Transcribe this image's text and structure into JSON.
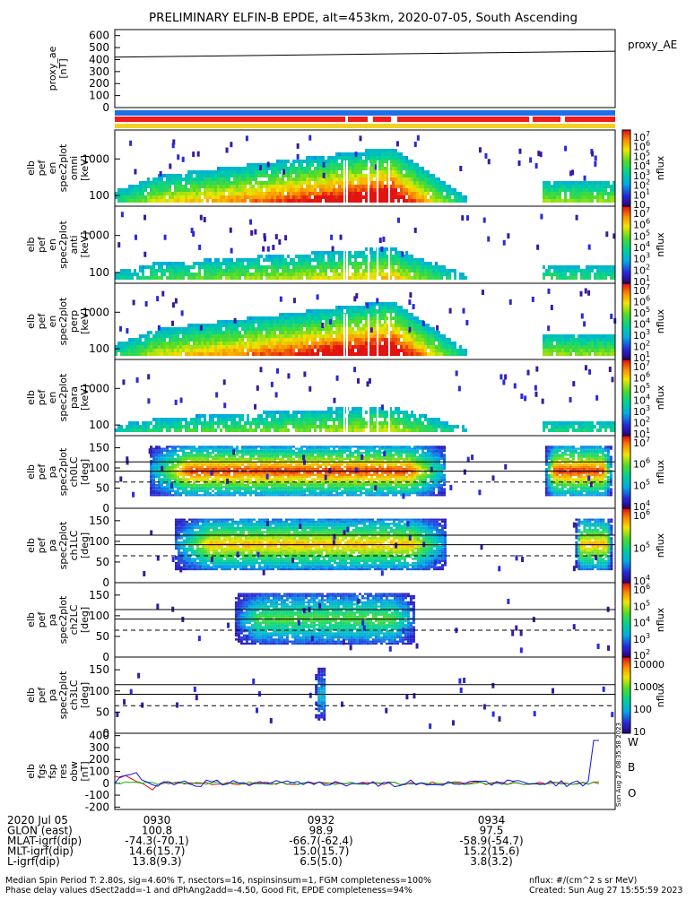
{
  "title": "PRELIMINARY ELFIN-B EPDE, alt=453km, 2020-07-05, South Ascending",
  "colors": {
    "status_blue": "#1e6fe6",
    "status_red": "#ee1c1c",
    "status_yellow": "#f2d024",
    "line_blue": "#1111ee",
    "line_green": "#11bb11",
    "line_red": "#dd1111"
  },
  "chart_data": [
    {
      "type": "line",
      "panel": "proxy_ae",
      "ylabel_lines": [
        "proxy_ae",
        "[nT]"
      ],
      "legend": "proxy_AE",
      "yticks": [
        "600",
        "500",
        "400",
        "300",
        "200",
        "100",
        "0"
      ],
      "ylim": [
        0,
        650
      ],
      "x": [
        0,
        1
      ],
      "values": [
        420,
        470
      ]
    },
    {
      "type": "heatmap",
      "panel": "elb_pef_spec2plot_omni",
      "ylabel_lines": [
        "elb",
        "pef",
        "en",
        "spec2plot",
        "omni",
        "[keV]"
      ],
      "yticks": [
        "1000",
        "100"
      ],
      "yscale": "log",
      "colorbar_ticks": [
        "10",
        "10",
        "10",
        "10",
        "10",
        "10",
        "10",
        "10"
      ],
      "colorbar_exponents": [
        "7",
        "6",
        "5",
        "4",
        "3",
        "2",
        "1",
        ""
      ],
      "colorbar_label": "nflux"
    },
    {
      "type": "heatmap",
      "panel": "elb_pef_spec2plot_anti",
      "ylabel_lines": [
        "elb",
        "pef",
        "en",
        "spec2plot",
        "anti",
        "[keV]"
      ],
      "yticks": [
        "1000",
        "100"
      ],
      "yscale": "log",
      "colorbar_ticks": [
        "10",
        "10",
        "10",
        "10",
        "10",
        "10",
        "10"
      ],
      "colorbar_exponents": [
        "7",
        "6",
        "5",
        "4",
        "3",
        "2",
        "1"
      ],
      "colorbar_label": "nflux"
    },
    {
      "type": "heatmap",
      "panel": "elb_pef_spec2plot_perp",
      "ylabel_lines": [
        "elb",
        "pef",
        "en",
        "spec2plot",
        "perp",
        "[keV]"
      ],
      "yticks": [
        "1000",
        "100"
      ],
      "yscale": "log",
      "colorbar_ticks": [
        "10",
        "10",
        "10",
        "10",
        "10",
        "10",
        "10"
      ],
      "colorbar_exponents": [
        "7",
        "6",
        "5",
        "4",
        "3",
        "2",
        "1"
      ],
      "colorbar_label": "nflux"
    },
    {
      "type": "heatmap",
      "panel": "elb_pef_spec2plot_para",
      "ylabel_lines": [
        "elb",
        "pef",
        "en",
        "spec2plot",
        "para",
        "[keV]"
      ],
      "yticks": [
        "1000",
        "100"
      ],
      "yscale": "log",
      "colorbar_ticks": [
        "10",
        "10",
        "10",
        "10",
        "10",
        "10",
        "10"
      ],
      "colorbar_exponents": [
        "7",
        "6",
        "5",
        "4",
        "3",
        "2",
        "1"
      ],
      "colorbar_label": "nflux"
    },
    {
      "type": "heatmap",
      "panel": "elb_pef_spec2plot_ch0LC",
      "ylabel_lines": [
        "elb",
        "pef",
        "pa",
        "spec2plot",
        "ch0LC",
        "[deg]"
      ],
      "yticks": [
        "150",
        "100",
        "50",
        "0"
      ],
      "ylim": [
        0,
        180
      ],
      "colorbar_ticks": [
        "10",
        "10",
        "10",
        "10"
      ],
      "colorbar_exponents": [
        "7",
        "6",
        "5",
        "4"
      ],
      "colorbar_label": "nflux"
    },
    {
      "type": "heatmap",
      "panel": "elb_pef_spec2plot_ch1LC",
      "ylabel_lines": [
        "elb",
        "pef",
        "pa",
        "spec2plot",
        "ch1LC",
        "[deg]"
      ],
      "yticks": [
        "150",
        "100",
        "50",
        "0"
      ],
      "ylim": [
        0,
        180
      ],
      "colorbar_ticks": [
        "10",
        "10",
        "10"
      ],
      "colorbar_exponents": [
        "6",
        "5",
        "4"
      ],
      "colorbar_label": "nflux"
    },
    {
      "type": "heatmap",
      "panel": "elb_pef_spec2plot_ch2LC",
      "ylabel_lines": [
        "elb",
        "pef",
        "pa",
        "spec2plot",
        "ch2LC",
        "[deg]"
      ],
      "yticks": [
        "150",
        "100",
        "50",
        "0"
      ],
      "ylim": [
        0,
        180
      ],
      "colorbar_ticks": [
        "10",
        "10",
        "10",
        "10",
        "10"
      ],
      "colorbar_exponents": [
        "6",
        "5",
        "4",
        "3",
        "2"
      ],
      "colorbar_label": "nflux"
    },
    {
      "type": "heatmap",
      "panel": "elb_pef_spec2plot_ch3LC",
      "ylabel_lines": [
        "elb",
        "pef",
        "pa",
        "spec2plot",
        "ch3LC",
        "[deg]"
      ],
      "yticks": [
        "150",
        "100",
        "50",
        "0"
      ],
      "ylim": [
        0,
        180
      ],
      "colorbar_ticks": [
        "10000",
        "1000",
        "100",
        "10"
      ],
      "colorbar_label": "nflux"
    },
    {
      "type": "line",
      "panel": "elb_fgs_fsp_res_obw",
      "ylabel_lines": [
        "elb",
        "fgs",
        "fsp",
        "res",
        "obw",
        "[nT]"
      ],
      "yticks": [
        "400",
        "300",
        "200",
        "100",
        "0",
        "-100",
        "-200"
      ],
      "ylim": [
        -220,
        420
      ],
      "legend": [
        "W",
        "B",
        "O"
      ],
      "vertical_stamp": "Sun Aug 27 08:35:58 2023",
      "series": [
        {
          "name": "W",
          "color": "red"
        },
        {
          "name": "B",
          "color": "green"
        },
        {
          "name": "O",
          "color": "blue"
        }
      ]
    }
  ],
  "xaxis": {
    "ticks": [
      "0930",
      "0932",
      "0934"
    ],
    "row_labels": [
      "2020 Jul 05",
      "GLON (east)",
      "MLAT-igrf(dip)",
      "MLT-igrf(dip)",
      "L-igrf(dip)"
    ],
    "columns": [
      [
        "100.8",
        "-74.3(-70.1)",
        "14.6(15.7)",
        "13.8(9.3)"
      ],
      [
        "98.9",
        "-66.7(-62.4)",
        "15.0(15.7)",
        "6.5(5.0)"
      ],
      [
        "97.5",
        "-58.9(-54.7)",
        "15.2(15.6)",
        "3.8(3.2)"
      ]
    ]
  },
  "footer": {
    "line1": "Median Spin Period T: 2.80s, sig=4.60% T, nsectors=16, nspinsinsum=1, FGM completeness=100%",
    "line2": "Phase delay values dSect2add=-1 and dPhAng2add=-4.50, Good Fit, EPDE completeness=94%",
    "right1": "nflux: #/(cm^2 s sr MeV)",
    "right2": "Created: Sun Aug 27 15:55:59 2023"
  }
}
